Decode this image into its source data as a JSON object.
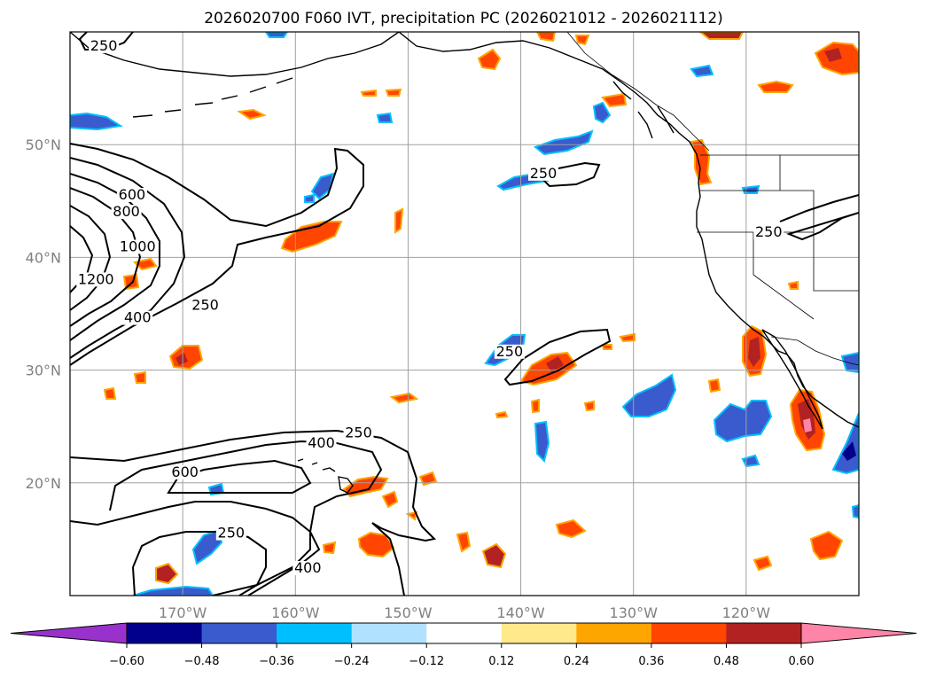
{
  "title": "2026020700 F060 IVT, precipitation PC (2026021012 - 2026021112)",
  "map": {
    "lon_range": [
      -180,
      -110
    ],
    "lat_range": [
      10,
      60
    ],
    "lat_ticks": [
      {
        "lat": 50,
        "label": "50°N"
      },
      {
        "lat": 40,
        "label": "40°N"
      },
      {
        "lat": 30,
        "label": "30°N"
      },
      {
        "lat": 20,
        "label": "20°N"
      }
    ],
    "lon_ticks": [
      {
        "lon": -170,
        "label": "170°W"
      },
      {
        "lon": -160,
        "label": "160°W"
      },
      {
        "lon": -150,
        "label": "150°W"
      },
      {
        "lon": -140,
        "label": "140°W"
      },
      {
        "lon": -130,
        "label": "130°W"
      },
      {
        "lon": -120,
        "label": "120°W"
      }
    ],
    "grid": true,
    "ivt_contour_labels": [
      {
        "text": "250",
        "lon": -177,
        "lat": 58.5
      },
      {
        "text": "600",
        "lon": -174.5,
        "lat": 45.3
      },
      {
        "text": "800",
        "lon": -175,
        "lat": 43.8
      },
      {
        "text": "1000",
        "lon": -174,
        "lat": 40.7
      },
      {
        "text": "1200",
        "lon": -177.7,
        "lat": 37.8
      },
      {
        "text": "400",
        "lon": -174,
        "lat": 34.4
      },
      {
        "text": "250",
        "lon": -168,
        "lat": 35.5
      },
      {
        "text": "250",
        "lon": -138,
        "lat": 47.2
      },
      {
        "text": "250",
        "lon": -118,
        "lat": 42.0
      },
      {
        "text": "250",
        "lon": -141,
        "lat": 31.4
      },
      {
        "text": "250",
        "lon": -154.4,
        "lat": 24.2
      },
      {
        "text": "400",
        "lon": -157.7,
        "lat": 23.3
      },
      {
        "text": "600",
        "lon": -169.8,
        "lat": 20.7
      },
      {
        "text": "250",
        "lon": -165.7,
        "lat": 15.3
      },
      {
        "text": "400",
        "lon": -158.9,
        "lat": 12.2
      }
    ]
  },
  "colorbar": {
    "levels": [
      -0.6,
      -0.48,
      -0.36,
      -0.24,
      -0.12,
      0.12,
      0.24,
      0.36,
      0.48,
      0.6
    ],
    "tick_labels": [
      "−0.60",
      "−0.48",
      "−0.36",
      "−0.24",
      "−0.12",
      "0.12",
      "0.24",
      "0.36",
      "0.48",
      "0.60"
    ],
    "colors": [
      "#9932cc",
      "#00008b",
      "#3a5bcd",
      "#00bfff",
      "#b0e2ff",
      "#ffffff",
      "#ffe98a",
      "#ffa500",
      "#ff4500",
      "#b22222",
      "#ff85a8"
    ],
    "extend": "both"
  },
  "colors": {
    "land_outline": "#000000",
    "grid": "#a0a0a0"
  }
}
